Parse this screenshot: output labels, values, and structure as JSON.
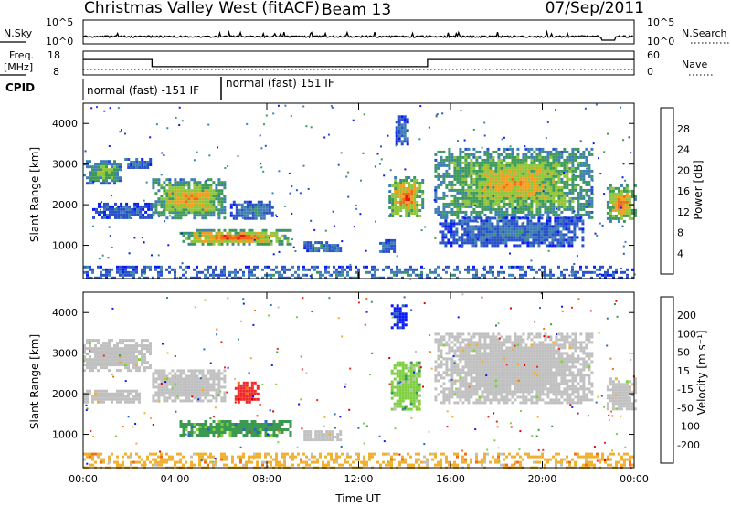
{
  "header": {
    "station": "Christmas Valley West (fitACF)",
    "beam": "Beam 13",
    "date": "07/Sep/2011"
  },
  "summary": {
    "nsky_label": "N.Sky",
    "nsky_ticks": [
      "10^5",
      "10^0"
    ],
    "nsearch_label": "N.Search",
    "nsearch_ticks": [
      "10^5",
      "10^0"
    ],
    "freq_label": "Freq.",
    "freq_unit": "[MHz]",
    "freq_ticks": [
      "18",
      "8"
    ],
    "nave_label": "Nave",
    "nave_ticks": [
      "60",
      "0"
    ],
    "cpid_label": "CPID",
    "cpid_segments": [
      {
        "start_h": 0,
        "end_h": 6,
        "label": "normal (fast) -151 IF"
      },
      {
        "start_h": 6,
        "end_h": 24,
        "label": "normal (fast) 151 IF"
      }
    ],
    "freq_steps": [
      {
        "start_h": 0,
        "end_h": 3,
        "value": 14.5
      },
      {
        "start_h": 3,
        "end_h": 15,
        "value": 11.5
      },
      {
        "start_h": 15,
        "end_h": 24,
        "value": 14.5
      }
    ]
  },
  "chart_data": [
    {
      "type": "heatmap",
      "quantity": "power",
      "ylabel": "Slant Range [km]",
      "xlim": [
        0,
        24
      ],
      "ylim": [
        180,
        4500
      ],
      "yticks": [
        "1000",
        "2000",
        "3000",
        "4000"
      ],
      "colorbar": {
        "label": "Power [dB]",
        "ticks": [
          "4",
          "8",
          "12",
          "16",
          "20",
          "24",
          "28"
        ],
        "colors": [
          "#0a1bf5",
          "#2a52c8",
          "#3f7fb4",
          "#3d9a5a",
          "#8fc63a",
          "#f0a020",
          "#f06a18",
          "#e81818"
        ]
      },
      "regions": [
        {
          "t0": 0.0,
          "t1": 1.6,
          "r0": 2550,
          "r1": 3100,
          "level": 0.55
        },
        {
          "t0": 1.8,
          "t1": 2.9,
          "r0": 2900,
          "r1": 3150,
          "level": 0.25
        },
        {
          "t0": 0.4,
          "t1": 3.0,
          "r0": 1650,
          "r1": 2050,
          "level": 0.2
        },
        {
          "t0": 3.0,
          "t1": 6.2,
          "r0": 1700,
          "r1": 2650,
          "level": 0.7
        },
        {
          "t0": 6.4,
          "t1": 8.2,
          "r0": 1650,
          "r1": 2100,
          "level": 0.3
        },
        {
          "t0": 4.2,
          "t1": 9.0,
          "r0": 1050,
          "r1": 1400,
          "level": 0.85
        },
        {
          "t0": 9.6,
          "t1": 11.2,
          "r0": 850,
          "r1": 1100,
          "level": 0.3
        },
        {
          "t0": 12.9,
          "t1": 13.6,
          "r0": 850,
          "r1": 1150,
          "level": 0.3
        },
        {
          "t0": 13.3,
          "t1": 14.8,
          "r0": 1700,
          "r1": 2700,
          "level": 0.8
        },
        {
          "t0": 13.6,
          "t1": 14.1,
          "r0": 3500,
          "r1": 4200,
          "level": 0.2
        },
        {
          "t0": 15.3,
          "t1": 22.2,
          "r0": 1700,
          "r1": 3400,
          "level": 0.65
        },
        {
          "t0": 15.5,
          "t1": 21.8,
          "r0": 1000,
          "r1": 1700,
          "level": 0.25
        },
        {
          "t0": 22.8,
          "t1": 24.0,
          "r0": 1600,
          "r1": 2500,
          "level": 0.8
        },
        {
          "t0": 0.0,
          "t1": 24.0,
          "r0": 180,
          "r1": 500,
          "level": 0.3
        }
      ]
    },
    {
      "type": "heatmap",
      "quantity": "velocity",
      "ylabel": "Slant Range [km]",
      "xlabel": "Time UT",
      "xlim": [
        0,
        24
      ],
      "ylim": [
        180,
        4500
      ],
      "yticks": [
        "1000",
        "2000",
        "3000",
        "4000"
      ],
      "xticks": [
        "00:00",
        "04:00",
        "08:00",
        "12:00",
        "16:00",
        "20:00",
        "00:00"
      ],
      "colorbar": {
        "label": "Velocity [m s⁻¹]",
        "ticks": [
          "200",
          "100",
          "50",
          "15",
          "-15",
          "-50",
          "-100",
          "-200"
        ],
        "colors": [
          "#0a1bf5",
          "#2a6ab8",
          "#3a9a50",
          "#7ed040",
          "#c0c0c0",
          "#f0b030",
          "#f07018",
          "#f02828",
          "#e00000"
        ]
      },
      "regions": [
        {
          "t0": 0.0,
          "t1": 2.9,
          "r0": 2600,
          "r1": 3350,
          "vel": 0
        },
        {
          "t0": 0.0,
          "t1": 2.5,
          "r0": 1800,
          "r1": 2100,
          "vel": 0
        },
        {
          "t0": 3.0,
          "t1": 6.2,
          "r0": 1800,
          "r1": 2600,
          "vel": 0
        },
        {
          "t0": 6.6,
          "t1": 7.6,
          "r0": 1800,
          "r1": 2300,
          "vel": -3
        },
        {
          "t0": 4.2,
          "t1": 9.0,
          "r0": 1000,
          "r1": 1350,
          "vel": 2
        },
        {
          "t0": 9.6,
          "t1": 11.2,
          "r0": 850,
          "r1": 1100,
          "vel": 0
        },
        {
          "t0": 13.4,
          "t1": 14.0,
          "r0": 3600,
          "r1": 4200,
          "vel": 4
        },
        {
          "t0": 13.4,
          "t1": 14.7,
          "r0": 1600,
          "r1": 2800,
          "vel": 1
        },
        {
          "t0": 15.3,
          "t1": 22.2,
          "r0": 1800,
          "r1": 3500,
          "vel": 0
        },
        {
          "t0": 22.8,
          "t1": 24.0,
          "r0": 1600,
          "r1": 2400,
          "vel": 0
        },
        {
          "t0": 0.0,
          "t1": 24.0,
          "r0": 180,
          "r1": 550,
          "vel": -1
        }
      ]
    }
  ]
}
